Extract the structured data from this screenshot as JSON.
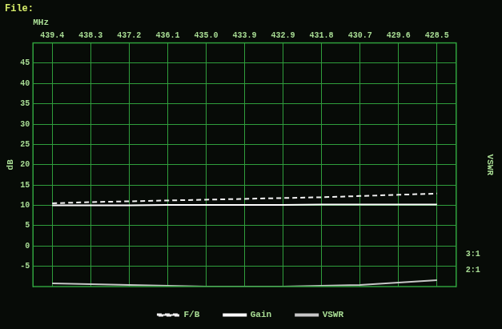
{
  "chart_data": {
    "type": "line",
    "title": "File:",
    "xlabel": "MHz",
    "ylabel": "dB",
    "y2label": "VSWR",
    "categories": [
      "439.4",
      "438.3",
      "437.2",
      "436.1",
      "435.0",
      "433.9",
      "432.9",
      "431.8",
      "430.7",
      "429.6",
      "428.5"
    ],
    "series": [
      {
        "name": "F/B",
        "color": "#f2f2f2",
        "line_style": "dashed",
        "values": [
          10.5,
          10.8,
          11.0,
          11.2,
          11.4,
          11.6,
          11.8,
          12.0,
          12.3,
          12.6,
          12.9
        ]
      },
      {
        "name": "Gain",
        "color": "#ffffff",
        "line_style": "solid",
        "values": [
          10.0,
          10.0,
          10.0,
          10.1,
          10.1,
          10.1,
          10.1,
          10.2,
          10.2,
          10.2,
          10.2
        ]
      },
      {
        "name": "VSWR",
        "color": "#c8c8c8",
        "line_style": "solid",
        "axis": "y2",
        "values": [
          1.2,
          1.15,
          1.1,
          1.05,
          1.0,
          1.0,
          1.0,
          1.05,
          1.1,
          1.25,
          1.4
        ]
      }
    ],
    "ylim": [
      -10,
      50
    ],
    "yticks": [
      -5,
      0,
      5,
      10,
      15,
      20,
      25,
      30,
      35,
      40,
      45
    ],
    "y2lim": [
      1,
      16
    ],
    "y2ticks": [
      {
        "value": 2,
        "label": "2:1"
      },
      {
        "value": 3,
        "label": "3:1"
      }
    ],
    "grid": true,
    "legend": "bottom",
    "marker": "none"
  }
}
